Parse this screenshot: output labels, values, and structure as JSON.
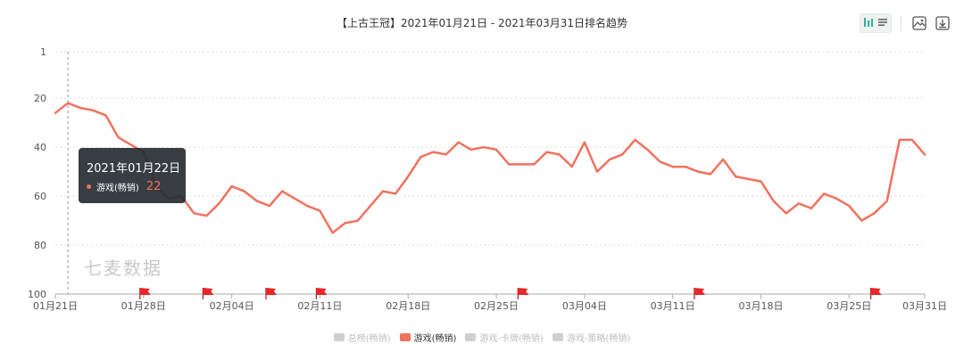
{
  "title": "【上古王冠】2021年01月21日 - 2021年03月31日排名趋势",
  "watermark": "七麦数据",
  "tooltip": {
    "date": "2021年01月22日",
    "series": "游戏(畅销)",
    "value": "22"
  },
  "toolbar": {
    "icons": [
      "bar-chart-icon",
      "list-icon",
      "image-download-icon",
      "download-icon"
    ]
  },
  "legend": [
    {
      "label": "总榜(畅销)",
      "active": false
    },
    {
      "label": "游戏(畅销)",
      "active": true
    },
    {
      "label": "游戏-卡牌(畅销)",
      "active": false
    },
    {
      "label": "游戏-策略(畅销)",
      "active": false
    }
  ],
  "colors": {
    "line": "#f0725f",
    "flag": "#e8272a",
    "grid": "#dddddd"
  },
  "chart_data": {
    "type": "line",
    "title": "【上古王冠】2021年01月21日 - 2021年03月31日排名趋势",
    "y_inverted": true,
    "ylim": [
      1,
      100
    ],
    "yticks": [
      "1",
      "20",
      "40",
      "60",
      "80",
      "100"
    ],
    "ytick_values": [
      1,
      20,
      40,
      60,
      80,
      100
    ],
    "xticks": [
      "01月21日",
      "01月28日",
      "02月04日",
      "02月11日",
      "02月18日",
      "02月25日",
      "03月04日",
      "03月11日",
      "03月18日",
      "03月25日",
      "03月31日"
    ],
    "xtick_days": [
      0,
      7,
      14,
      21,
      28,
      35,
      42,
      49,
      56,
      63,
      69
    ],
    "grid": true,
    "series": [
      {
        "name": "游戏(畅销)",
        "values": [
          26,
          22,
          24,
          25,
          27,
          36,
          39,
          42,
          56,
          61,
          60,
          67,
          68,
          63,
          56,
          58,
          62,
          64,
          58,
          61,
          64,
          66,
          75,
          71,
          70,
          64,
          58,
          59,
          52,
          44,
          42,
          43,
          38,
          41,
          40,
          41,
          47,
          47,
          47,
          42,
          43,
          48,
          38,
          50,
          45,
          43,
          37,
          41,
          46,
          48,
          48,
          50,
          51,
          45,
          52,
          53,
          54,
          62,
          67,
          63,
          65,
          59,
          61,
          64,
          70,
          67,
          62,
          37,
          37,
          43
        ]
      }
    ],
    "flag_days": [
      7,
      12,
      17,
      21,
      37,
      51,
      65
    ]
  }
}
